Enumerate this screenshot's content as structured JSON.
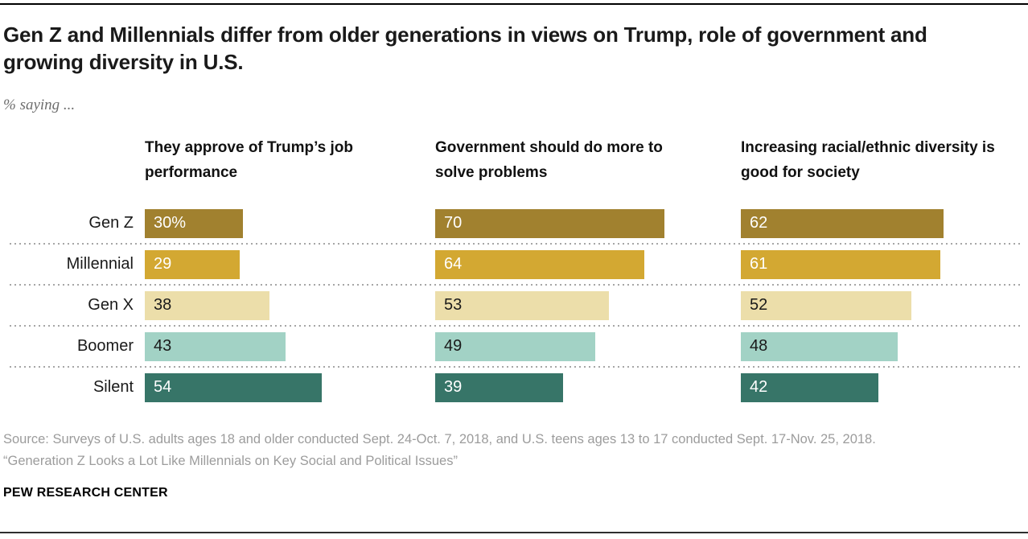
{
  "header": {
    "title": "Gen Z and Millennials differ from older generations in views on Trump, role of government and growing diversity in U.S.",
    "subtitle": "% saying ..."
  },
  "chart_data": {
    "type": "bar",
    "orientation": "horizontal",
    "categories": [
      "Gen Z",
      "Millennial",
      "Gen X",
      "Boomer",
      "Silent"
    ],
    "panels": [
      {
        "title": "They approve of Trump’s job performance",
        "values": [
          30,
          29,
          38,
          43,
          54
        ],
        "value_labels": [
          "30%",
          "29",
          "38",
          "43",
          "54"
        ]
      },
      {
        "title": "Government should do more to solve problems",
        "values": [
          70,
          64,
          53,
          49,
          39
        ],
        "value_labels": [
          "70",
          "64",
          "53",
          "49",
          "39"
        ]
      },
      {
        "title": "Increasing racial/ethnic diversity is good for society",
        "values": [
          62,
          61,
          52,
          48,
          42
        ],
        "value_labels": [
          "62",
          "61",
          "52",
          "48",
          "42"
        ]
      }
    ],
    "bar_colors": [
      "#A1812F",
      "#D3A832",
      "#ECDEAA",
      "#A2D2C5",
      "#377568"
    ],
    "value_text_colors": [
      "#FFFFFF",
      "#FFFFFF",
      "#1A1A1A",
      "#1A1A1A",
      "#FFFFFF"
    ],
    "value_unit": "%",
    "xlim": [
      0,
      100
    ],
    "grid": false,
    "legend": "none",
    "separator_style": "dotted"
  },
  "footer": {
    "source_line": "Source: Surveys of U.S. adults ages 18 and older conducted Sept. 24-Oct. 7, 2018, and U.S. teens ages 13 to 17 conducted Sept. 17-Nov. 25, 2018.",
    "quote_line": "“Generation Z Looks a Lot Like Millennials on Key Social and Political Issues”",
    "brand": "PEW RESEARCH CENTER"
  }
}
